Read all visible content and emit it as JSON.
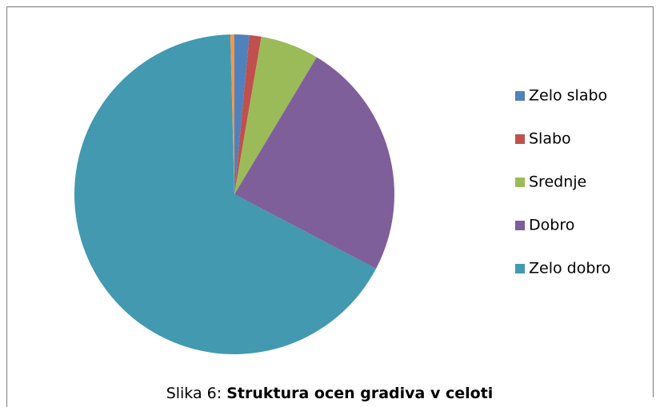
{
  "chart_data": {
    "type": "pie",
    "caption_label": "Slika 6:",
    "title": "Struktura ocen gradiva v celoti",
    "categories": [
      "Zelo slabo",
      "Slabo",
      "Srednje",
      "Dobro",
      "Zelo dobro",
      null
    ],
    "values": [
      1.5,
      1.2,
      5.9,
      24.1,
      66.9,
      0.4
    ],
    "colors": [
      "#4f81bd",
      "#c0504d",
      "#9bbb59",
      "#7f5f9a",
      "#4299b0",
      "#f79646"
    ],
    "legend": "right"
  }
}
